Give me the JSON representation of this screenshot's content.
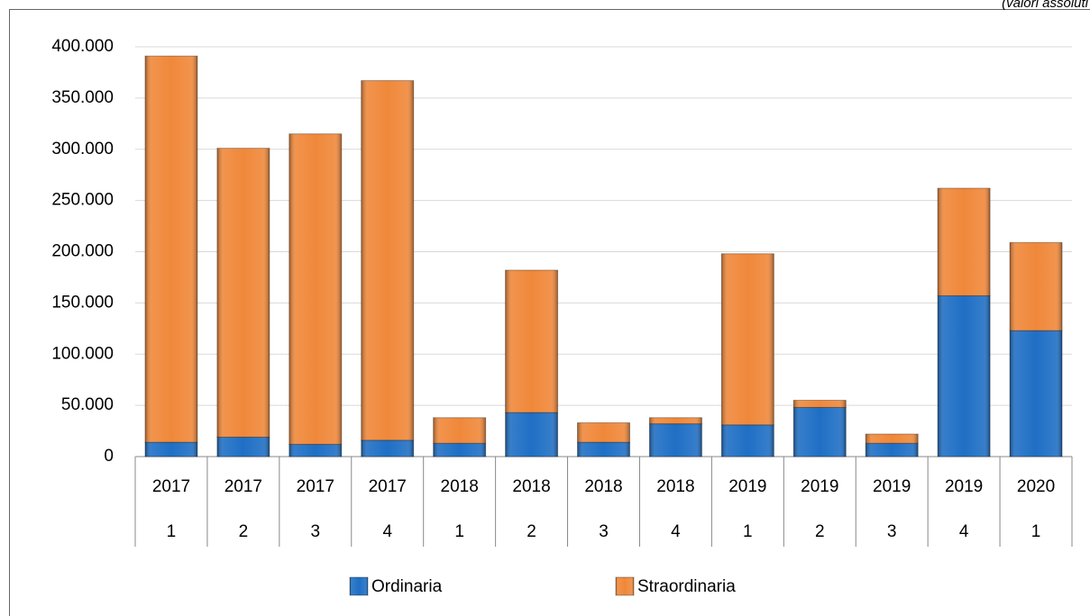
{
  "chart_data": {
    "type": "stacked_bar",
    "subtitle": "(valori assoluti",
    "categories": [
      "2017",
      "2017",
      "2017",
      "2017",
      "2018",
      "2018",
      "2018",
      "2018",
      "2019",
      "2019",
      "2019",
      "2019",
      "2020"
    ],
    "subcategories": [
      "1",
      "2",
      "3",
      "4",
      "1",
      "2",
      "3",
      "4",
      "1",
      "2",
      "3",
      "4",
      "1"
    ],
    "series": [
      {
        "name": "Ordinaria",
        "color": "#1f6fc5",
        "values": [
          14000,
          19000,
          12000,
          16000,
          13000,
          43000,
          14000,
          32000,
          31000,
          48000,
          13000,
          157000,
          123000
        ]
      },
      {
        "name": "Straordinaria",
        "color": "#f0883a",
        "values": [
          377000,
          282000,
          303000,
          351000,
          25000,
          139000,
          19000,
          6000,
          167000,
          7000,
          9000,
          105000,
          86000
        ]
      }
    ],
    "ylim": [
      0,
      400000
    ],
    "yticks": [
      0,
      {
        "value": 50000,
        "label": "50.000"
      },
      {
        "value": 100000,
        "label": "100.000"
      },
      {
        "value": 150000,
        "label": "150.000"
      },
      {
        "value": 200000,
        "label": "200.000"
      },
      {
        "value": 250000,
        "label": "250.000"
      },
      {
        "value": 300000,
        "label": "300.000"
      },
      {
        "value": 350000,
        "label": "350.000"
      },
      {
        "value": 400000,
        "label": "400.000"
      }
    ],
    "grid": true,
    "legend": "bottom"
  }
}
